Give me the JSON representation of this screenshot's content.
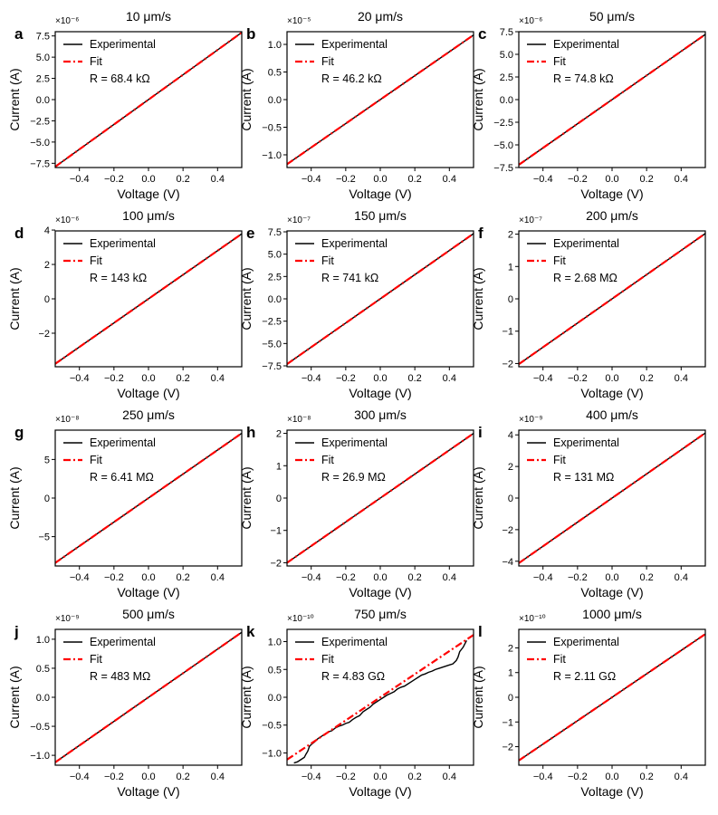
{
  "figure": {
    "legend": {
      "experimental_label": "Experimental",
      "fit_label": "Fit"
    },
    "colors": {
      "experimental": "#000000",
      "fit": "#ff0000",
      "axes": "#000000",
      "background": "#ffffff"
    }
  },
  "chart_data": [
    {
      "panel": "a",
      "type": "line",
      "title": "10 μm/s",
      "xlabel": "Voltage (V)",
      "ylabel": "Current (A)",
      "multiplier": "×10⁻⁶",
      "resistance": "R = 68.4 kΩ",
      "xlim": [
        -0.54,
        0.54
      ],
      "ylim": [
        -8.0,
        8.0
      ],
      "xticks": [
        -0.4,
        -0.2,
        0.0,
        0.2,
        0.4
      ],
      "xtick_labels": [
        "−0.4",
        "−0.2",
        "0.0",
        "0.2",
        "0.4"
      ],
      "yticks": [
        -7.5,
        -5.0,
        -2.5,
        0.0,
        2.5,
        5.0,
        7.5
      ],
      "ytick_labels": [
        "−7.5",
        "−5.0",
        "−2.5",
        "0.0",
        "2.5",
        "5.0",
        "7.5"
      ],
      "series": [
        {
          "name": "Experimental",
          "x": [
            -0.54,
            0.54
          ],
          "y": [
            -7.9,
            7.9
          ]
        },
        {
          "name": "Fit",
          "x": [
            -0.54,
            0.54
          ],
          "y": [
            -7.9,
            7.9
          ]
        }
      ]
    },
    {
      "panel": "b",
      "type": "line",
      "title": "20 μm/s",
      "xlabel": "Voltage (V)",
      "ylabel": "Current (A)",
      "multiplier": "×10⁻⁵",
      "resistance": "R = 46.2 kΩ",
      "xlim": [
        -0.54,
        0.54
      ],
      "ylim": [
        -1.23,
        1.23
      ],
      "xticks": [
        -0.4,
        -0.2,
        0.0,
        0.2,
        0.4
      ],
      "xtick_labels": [
        "−0.4",
        "−0.2",
        "0.0",
        "0.2",
        "0.4"
      ],
      "yticks": [
        -1.0,
        -0.5,
        0.0,
        0.5,
        1.0
      ],
      "ytick_labels": [
        "−1.0",
        "−0.5",
        "0.0",
        "0.5",
        "1.0"
      ],
      "series": [
        {
          "name": "Experimental",
          "x": [
            -0.54,
            0.54
          ],
          "y": [
            -1.17,
            1.17
          ]
        },
        {
          "name": "Fit",
          "x": [
            -0.54,
            0.54
          ],
          "y": [
            -1.17,
            1.17
          ]
        }
      ]
    },
    {
      "panel": "c",
      "type": "line",
      "title": "50 μm/s",
      "xlabel": "Voltage (V)",
      "ylabel": "Current (A)",
      "multiplier": "×10⁻⁶",
      "resistance": "R = 74.8 kΩ",
      "xlim": [
        -0.54,
        0.54
      ],
      "ylim": [
        -7.5,
        7.5
      ],
      "xticks": [
        -0.4,
        -0.2,
        0.0,
        0.2,
        0.4
      ],
      "xtick_labels": [
        "−0.4",
        "−0.2",
        "0.0",
        "0.2",
        "0.4"
      ],
      "yticks": [
        -7.5,
        -5.0,
        -2.5,
        0.0,
        2.5,
        5.0,
        7.5
      ],
      "ytick_labels": [
        "−7.5",
        "−5.0",
        "−2.5",
        "0.0",
        "2.5",
        "5.0",
        "7.5"
      ],
      "series": [
        {
          "name": "Experimental",
          "x": [
            -0.54,
            0.54
          ],
          "y": [
            -7.2,
            7.2
          ]
        },
        {
          "name": "Fit",
          "x": [
            -0.54,
            0.54
          ],
          "y": [
            -7.2,
            7.2
          ]
        }
      ]
    },
    {
      "panel": "d",
      "type": "line",
      "title": "100 μm/s",
      "xlabel": "Voltage (V)",
      "ylabel": "Current (A)",
      "multiplier": "×10⁻⁶",
      "resistance": "R = 143 kΩ",
      "xlim": [
        -0.54,
        0.54
      ],
      "ylim": [
        -3.95,
        3.95
      ],
      "xticks": [
        -0.4,
        -0.2,
        0.0,
        0.2,
        0.4
      ],
      "xtick_labels": [
        "−0.4",
        "−0.2",
        "0.0",
        "0.2",
        "0.4"
      ],
      "yticks": [
        -2,
        0,
        2,
        4
      ],
      "ytick_labels": [
        "−2",
        "0",
        "2",
        "4"
      ],
      "series": [
        {
          "name": "Experimental",
          "x": [
            -0.54,
            0.54
          ],
          "y": [
            -3.78,
            3.78
          ]
        },
        {
          "name": "Fit",
          "x": [
            -0.54,
            0.54
          ],
          "y": [
            -3.78,
            3.78
          ]
        }
      ]
    },
    {
      "panel": "e",
      "type": "line",
      "title": "150 μm/s",
      "xlabel": "Voltage (V)",
      "ylabel": "Current (A)",
      "multiplier": "×10⁻⁷",
      "resistance": "R = 741 kΩ",
      "xlim": [
        -0.54,
        0.54
      ],
      "ylim": [
        -7.6,
        7.6
      ],
      "xticks": [
        -0.4,
        -0.2,
        0.0,
        0.2,
        0.4
      ],
      "xtick_labels": [
        "−0.4",
        "−0.2",
        "0.0",
        "0.2",
        "0.4"
      ],
      "yticks": [
        -7.5,
        -5.0,
        -2.5,
        0.0,
        2.5,
        5.0,
        7.5
      ],
      "ytick_labels": [
        "−7.5",
        "−5.0",
        "−2.5",
        "0.0",
        "2.5",
        "5.0",
        "7.5"
      ],
      "series": [
        {
          "name": "Experimental",
          "x": [
            -0.54,
            0.54
          ],
          "y": [
            -7.3,
            7.3
          ]
        },
        {
          "name": "Fit",
          "x": [
            -0.54,
            0.54
          ],
          "y": [
            -7.3,
            7.3
          ]
        }
      ]
    },
    {
      "panel": "f",
      "type": "line",
      "title": "200 μm/s",
      "xlabel": "Voltage (V)",
      "ylabel": "Current (A)",
      "multiplier": "×10⁻⁷",
      "resistance": "R = 2.68 MΩ",
      "xlim": [
        -0.54,
        0.54
      ],
      "ylim": [
        -2.1,
        2.1
      ],
      "xticks": [
        -0.4,
        -0.2,
        0.0,
        0.2,
        0.4
      ],
      "xtick_labels": [
        "−0.4",
        "−0.2",
        "0.0",
        "0.2",
        "0.4"
      ],
      "yticks": [
        -2,
        -1,
        0,
        1,
        2
      ],
      "ytick_labels": [
        "−2",
        "−1",
        "0",
        "1",
        "2"
      ],
      "series": [
        {
          "name": "Experimental",
          "x": [
            -0.54,
            0.54
          ],
          "y": [
            -2.02,
            2.02
          ]
        },
        {
          "name": "Fit",
          "x": [
            -0.54,
            0.54
          ],
          "y": [
            -2.02,
            2.02
          ]
        }
      ]
    },
    {
      "panel": "g",
      "type": "line",
      "title": "250 μm/s",
      "xlabel": "Voltage (V)",
      "ylabel": "Current (A)",
      "multiplier": "×10⁻⁸",
      "resistance": "R = 6.41 MΩ",
      "xlim": [
        -0.54,
        0.54
      ],
      "ylim": [
        -8.8,
        8.8
      ],
      "xticks": [
        -0.4,
        -0.2,
        0.0,
        0.2,
        0.4
      ],
      "xtick_labels": [
        "−0.4",
        "−0.2",
        "0.0",
        "0.2",
        "0.4"
      ],
      "yticks": [
        -5,
        0,
        5
      ],
      "ytick_labels": [
        "−5",
        "0",
        "5"
      ],
      "series": [
        {
          "name": "Experimental",
          "x": [
            -0.54,
            0.54
          ],
          "y": [
            -8.4,
            8.4
          ]
        },
        {
          "name": "Fit",
          "x": [
            -0.54,
            0.54
          ],
          "y": [
            -8.4,
            8.4
          ]
        }
      ]
    },
    {
      "panel": "h",
      "type": "line",
      "title": "300 μm/s",
      "xlabel": "Voltage (V)",
      "ylabel": "Current (A)",
      "multiplier": "×10⁻⁸",
      "resistance": "R = 26.9 MΩ",
      "xlim": [
        -0.54,
        0.54
      ],
      "ylim": [
        -2.1,
        2.1
      ],
      "xticks": [
        -0.4,
        -0.2,
        0.0,
        0.2,
        0.4
      ],
      "xtick_labels": [
        "−0.4",
        "−0.2",
        "0.0",
        "0.2",
        "0.4"
      ],
      "yticks": [
        -2,
        -1,
        0,
        1,
        2
      ],
      "ytick_labels": [
        "−2",
        "−1",
        "0",
        "1",
        "2"
      ],
      "series": [
        {
          "name": "Experimental",
          "x": [
            -0.54,
            0.54
          ],
          "y": [
            -2.0,
            2.0
          ]
        },
        {
          "name": "Fit",
          "x": [
            -0.54,
            0.54
          ],
          "y": [
            -2.0,
            2.0
          ]
        }
      ]
    },
    {
      "panel": "i",
      "type": "line",
      "title": "400 μm/s",
      "xlabel": "Voltage (V)",
      "ylabel": "Current (A)",
      "multiplier": "×10⁻⁹",
      "resistance": "R = 131 MΩ",
      "xlim": [
        -0.54,
        0.54
      ],
      "ylim": [
        -4.3,
        4.3
      ],
      "xticks": [
        -0.4,
        -0.2,
        0.0,
        0.2,
        0.4
      ],
      "xtick_labels": [
        "−0.4",
        "−0.2",
        "0.0",
        "0.2",
        "0.4"
      ],
      "yticks": [
        -4,
        -2,
        0,
        2,
        4
      ],
      "ytick_labels": [
        "−4",
        "−2",
        "0",
        "2",
        "4"
      ],
      "series": [
        {
          "name": "Experimental",
          "x": [
            -0.54,
            0.54
          ],
          "y": [
            -4.12,
            4.12
          ]
        },
        {
          "name": "Fit",
          "x": [
            -0.54,
            0.54
          ],
          "y": [
            -4.12,
            4.12
          ]
        }
      ]
    },
    {
      "panel": "j",
      "type": "line",
      "title": "500 μm/s",
      "xlabel": "Voltage (V)",
      "ylabel": "Current (A)",
      "multiplier": "×10⁻⁹",
      "resistance": "R = 483 MΩ",
      "xlim": [
        -0.54,
        0.54
      ],
      "ylim": [
        -1.17,
        1.17
      ],
      "xticks": [
        -0.4,
        -0.2,
        0.0,
        0.2,
        0.4
      ],
      "xtick_labels": [
        "−0.4",
        "−0.2",
        "0.0",
        "0.2",
        "0.4"
      ],
      "yticks": [
        -1.0,
        -0.5,
        0.0,
        0.5,
        1.0
      ],
      "ytick_labels": [
        "−1.0",
        "−0.5",
        "0.0",
        "0.5",
        "1.0"
      ],
      "series": [
        {
          "name": "Experimental",
          "x": [
            -0.54,
            0.54
          ],
          "y": [
            -1.12,
            1.12
          ]
        },
        {
          "name": "Fit",
          "x": [
            -0.54,
            0.54
          ],
          "y": [
            -1.12,
            1.12
          ]
        }
      ]
    },
    {
      "panel": "k",
      "type": "line",
      "title": "750 μm/s",
      "xlabel": "Voltage (V)",
      "ylabel": "Current (A)",
      "multiplier": "×10⁻¹⁰",
      "resistance": "R = 4.83 GΩ",
      "xlim": [
        -0.54,
        0.54
      ],
      "ylim": [
        -1.22,
        1.22
      ],
      "xticks": [
        -0.4,
        -0.2,
        0.0,
        0.2,
        0.4
      ],
      "xtick_labels": [
        "−0.4",
        "−0.2",
        "0.0",
        "0.2",
        "0.4"
      ],
      "yticks": [
        -1.0,
        -0.5,
        0.0,
        0.5,
        1.0
      ],
      "ytick_labels": [
        "−1.0",
        "−0.5",
        "0.0",
        "0.5",
        "1.0"
      ],
      "series": [
        {
          "name": "Experimental",
          "x": [
            -0.5,
            -0.48,
            -0.46,
            -0.44,
            -0.43,
            -0.42,
            -0.41,
            -0.4,
            -0.38,
            -0.36,
            -0.34,
            -0.32,
            -0.3,
            -0.28,
            -0.26,
            -0.24,
            -0.22,
            -0.2,
            -0.18,
            -0.16,
            -0.14,
            -0.12,
            -0.1,
            -0.08,
            -0.06,
            -0.04,
            -0.02,
            0.0,
            0.02,
            0.04,
            0.06,
            0.08,
            0.1,
            0.12,
            0.14,
            0.16,
            0.18,
            0.2,
            0.22,
            0.24,
            0.26,
            0.28,
            0.3,
            0.32,
            0.34,
            0.36,
            0.38,
            0.4,
            0.42,
            0.44,
            0.45,
            0.46,
            0.47,
            0.48,
            0.49,
            0.5
          ],
          "y": [
            -1.18,
            -1.16,
            -1.12,
            -1.08,
            -1.02,
            -0.97,
            -0.88,
            -0.85,
            -0.8,
            -0.74,
            -0.7,
            -0.66,
            -0.62,
            -0.6,
            -0.55,
            -0.52,
            -0.5,
            -0.47,
            -0.45,
            -0.4,
            -0.36,
            -0.33,
            -0.26,
            -0.22,
            -0.18,
            -0.12,
            -0.08,
            -0.04,
            0.0,
            0.04,
            0.07,
            0.1,
            0.15,
            0.18,
            0.2,
            0.24,
            0.28,
            0.32,
            0.36,
            0.4,
            0.42,
            0.45,
            0.47,
            0.5,
            0.52,
            0.54,
            0.56,
            0.58,
            0.6,
            0.66,
            0.72,
            0.82,
            0.86,
            0.9,
            0.96,
            1.02
          ]
        },
        {
          "name": "Fit",
          "x": [
            -0.54,
            0.54
          ],
          "y": [
            -1.12,
            1.12
          ]
        }
      ]
    },
    {
      "panel": "l",
      "type": "line",
      "title": "1000 μm/s",
      "xlabel": "Voltage (V)",
      "ylabel": "Current (A)",
      "multiplier": "×10⁻¹⁰",
      "resistance": "R = 2.11 GΩ",
      "xlim": [
        -0.54,
        0.54
      ],
      "ylim": [
        -2.75,
        2.75
      ],
      "xticks": [
        -0.4,
        -0.2,
        0.0,
        0.2,
        0.4
      ],
      "xtick_labels": [
        "−0.4",
        "−0.2",
        "0.0",
        "0.2",
        "0.4"
      ],
      "yticks": [
        -2,
        -1,
        0,
        1,
        2
      ],
      "ytick_labels": [
        "−2",
        "−1",
        "0",
        "1",
        "2"
      ],
      "series": [
        {
          "name": "Experimental",
          "x": [
            -0.54,
            0.54
          ],
          "y": [
            -2.56,
            2.56
          ]
        },
        {
          "name": "Fit",
          "x": [
            -0.54,
            0.54
          ],
          "y": [
            -2.56,
            2.56
          ]
        }
      ]
    }
  ]
}
